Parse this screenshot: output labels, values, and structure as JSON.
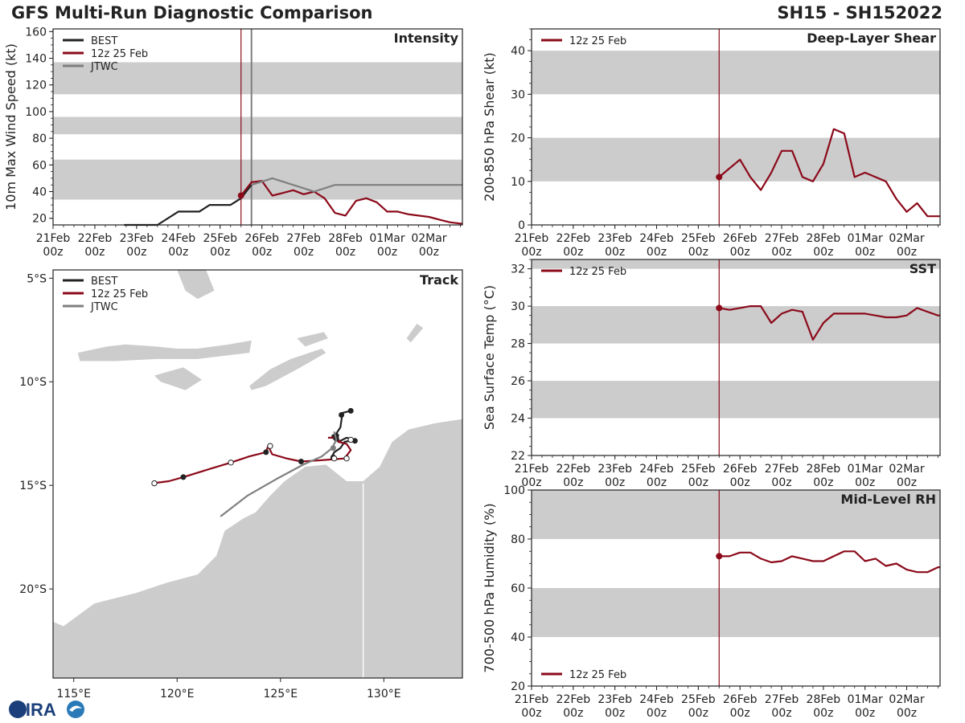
{
  "header": {
    "title_left": "GFS Multi-Run Diagnostic Comparison",
    "title_right": "SH15 - SH152022"
  },
  "colors": {
    "best": "#222222",
    "gfs": "#8b0a1a",
    "jtwc": "#7f7f7f",
    "band": "#cccccc",
    "land": "#cccccc",
    "vline_gfs": "#8b0a1a",
    "vline_jtwc": "#7f7f7f"
  },
  "time_axis": {
    "labels": [
      [
        "21Feb",
        "00z"
      ],
      [
        "22Feb",
        "00z"
      ],
      [
        "23Feb",
        "00z"
      ],
      [
        "24Feb",
        "00z"
      ],
      [
        "25Feb",
        "00z"
      ],
      [
        "26Feb",
        "00z"
      ],
      [
        "27Feb",
        "00z"
      ],
      [
        "28Feb",
        "00z"
      ],
      [
        "01Mar",
        "00z"
      ],
      [
        "02Mar",
        "00z"
      ]
    ],
    "range_days": [
      0,
      9.8
    ],
    "init_day": 4.5,
    "jtwc_day": 4.75
  },
  "logo": {
    "text": "CIRA"
  },
  "chart_data": [
    {
      "id": "intensity",
      "type": "line",
      "title": "Intensity",
      "ylabel": "10m Max Wind Speed (kt)",
      "ylim": [
        15,
        162
      ],
      "yticks": [
        20,
        40,
        60,
        80,
        100,
        120,
        140,
        160
      ],
      "bands": [
        [
          34,
          64
        ],
        [
          83,
          96
        ],
        [
          113,
          137
        ]
      ],
      "legend": [
        "BEST",
        "12z 25 Feb",
        "JTWC"
      ],
      "legend_pos": "top-left",
      "series": [
        {
          "name": "BEST",
          "key": "best",
          "x": [
            1.7,
            2.5,
            3.0,
            3.5,
            3.75,
            4.0,
            4.25,
            4.5,
            4.75
          ],
          "y": [
            15,
            15,
            25,
            25,
            30,
            30,
            30,
            35,
            45
          ]
        },
        {
          "name": "12z 25 Feb",
          "key": "gfs",
          "start_marker": true,
          "x": [
            4.5,
            4.75,
            5.0,
            5.25,
            5.5,
            5.75,
            6.0,
            6.25,
            6.5,
            6.75,
            7.0,
            7.25,
            7.5,
            7.75,
            8.0,
            8.25,
            8.5,
            8.75,
            9.0,
            9.25,
            9.5,
            9.75,
            9.8
          ],
          "y": [
            37,
            47,
            48,
            37,
            39,
            41,
            38,
            40,
            35,
            24,
            22,
            33,
            35,
            32,
            25,
            25,
            23,
            22,
            21,
            19,
            17,
            16,
            16
          ]
        },
        {
          "name": "JTWC",
          "key": "jtwc",
          "x": [
            4.75,
            5.25,
            6.25,
            6.75,
            9.8
          ],
          "y": [
            45,
            50,
            40,
            45,
            45
          ]
        }
      ]
    },
    {
      "id": "shear",
      "type": "line",
      "title": "Deep-Layer Shear",
      "ylabel": "200-850 hPa Shear (kt)",
      "ylim": [
        0,
        45
      ],
      "yticks": [
        0,
        10,
        20,
        30,
        40
      ],
      "bands": [
        [
          10,
          20
        ],
        [
          30,
          40
        ]
      ],
      "legend": [
        "12z 25 Feb"
      ],
      "legend_pos": "top-left",
      "series": [
        {
          "name": "12z 25 Feb",
          "key": "gfs",
          "start_marker": true,
          "x": [
            4.5,
            4.75,
            5.0,
            5.25,
            5.5,
            5.75,
            6.0,
            6.25,
            6.5,
            6.75,
            7.0,
            7.25,
            7.5,
            7.75,
            8.0,
            8.25,
            8.5,
            8.75,
            9.0,
            9.25,
            9.5,
            9.75,
            9.8
          ],
          "y": [
            11,
            13,
            15,
            11,
            8,
            12,
            17,
            17,
            11,
            10,
            14,
            22,
            21,
            11,
            12,
            11,
            10,
            6,
            3,
            5,
            2,
            2,
            2
          ]
        }
      ]
    },
    {
      "id": "sst",
      "type": "line",
      "title": "SST",
      "ylabel": "Sea Surface Temp (°C)",
      "ylim": [
        22,
        32.5
      ],
      "yticks": [
        22,
        24,
        26,
        28,
        30,
        32
      ],
      "bands": [
        [
          24,
          26
        ],
        [
          28,
          30
        ],
        [
          32,
          32.5
        ]
      ],
      "legend": [
        "12z 25 Feb"
      ],
      "legend_pos": "top-left",
      "series": [
        {
          "name": "12z 25 Feb",
          "key": "gfs",
          "start_marker": true,
          "x": [
            4.5,
            4.75,
            5.0,
            5.25,
            5.5,
            5.75,
            6.0,
            6.25,
            6.5,
            6.75,
            7.0,
            7.25,
            7.5,
            7.75,
            8.0,
            8.25,
            8.5,
            8.75,
            9.0,
            9.25,
            9.5,
            9.75,
            9.8
          ],
          "y": [
            29.9,
            29.8,
            29.9,
            30.0,
            30.0,
            29.1,
            29.6,
            29.8,
            29.7,
            28.2,
            29.1,
            29.6,
            29.6,
            29.6,
            29.6,
            29.5,
            29.4,
            29.4,
            29.5,
            29.9,
            29.7,
            29.5,
            29.5
          ]
        }
      ]
    },
    {
      "id": "rh",
      "type": "line",
      "title": "Mid-Level RH",
      "ylabel": "700-500 hPa Humidity (%)",
      "ylim": [
        20,
        100
      ],
      "yticks": [
        20,
        40,
        60,
        80,
        100
      ],
      "bands": [
        [
          40,
          60
        ],
        [
          80,
          100
        ]
      ],
      "legend": [
        "12z 25 Feb"
      ],
      "legend_pos": "bottom-left",
      "series": [
        {
          "name": "12z 25 Feb",
          "key": "gfs",
          "start_marker": true,
          "x": [
            4.5,
            4.75,
            5.0,
            5.25,
            5.5,
            5.75,
            6.0,
            6.25,
            6.5,
            6.75,
            7.0,
            7.25,
            7.5,
            7.75,
            8.0,
            8.25,
            8.5,
            8.75,
            9.0,
            9.25,
            9.5,
            9.75,
            9.8
          ],
          "y": [
            73,
            73,
            74.5,
            74.5,
            72,
            70.5,
            71,
            73,
            72,
            71,
            71,
            73,
            75,
            75,
            71,
            72,
            69,
            70,
            67.5,
            66.5,
            66.5,
            68.5,
            68.5
          ]
        }
      ]
    },
    {
      "id": "track",
      "type": "scatter",
      "title": "Track",
      "xlim": [
        114,
        133.8
      ],
      "ylim": [
        -24.3,
        -4.6
      ],
      "xticks": [
        115,
        120,
        125,
        130
      ],
      "xtick_labels": [
        "115°E",
        "120°E",
        "125°E",
        "130°E"
      ],
      "yticks": [
        -5,
        -10,
        -15,
        -20
      ],
      "ytick_labels": [
        "5°S",
        "10°S",
        "15°S",
        "20°S"
      ],
      "legend": [
        "BEST",
        "12z 25 Feb",
        "JTWC"
      ],
      "legend_pos": "top-left",
      "series": [
        {
          "name": "BEST",
          "key": "best",
          "lon": [
            128.4,
            128.4,
            128.0,
            127.9,
            127.7,
            127.6,
            127.8,
            128.2,
            128.6,
            128.1,
            127.9,
            127.6,
            127.5
          ],
          "lat": [
            -11.4,
            -11.4,
            -11.5,
            -12.2,
            -12.5,
            -12.7,
            -12.9,
            -12.7,
            -12.8,
            -12.9,
            -13.2,
            -13.4,
            -13.6
          ],
          "markers": [
            [
              128.4,
              -11.4
            ],
            [
              127.95,
              -11.6
            ],
            [
              127.7,
              -12.6
            ],
            [
              128.6,
              -12.85
            ],
            [
              127.6,
              -12.65
            ]
          ]
        },
        {
          "name": "12z 25 Feb",
          "key": "gfs",
          "lon": [
            127.3,
            127.6,
            127.8,
            127.9,
            127.8,
            128.2,
            128.4,
            128.1,
            127.5,
            126.8,
            126.0,
            125.3,
            124.6,
            124.4,
            124.3,
            123.5,
            122.6,
            121.6,
            120.3,
            119.6,
            118.8
          ],
          "lat": [
            -12.7,
            -12.7,
            -12.8,
            -12.9,
            -12.9,
            -13.0,
            -13.3,
            -13.7,
            -13.75,
            -13.8,
            -13.85,
            -13.7,
            -13.5,
            -13.1,
            -13.4,
            -13.6,
            -13.9,
            -14.2,
            -14.6,
            -14.8,
            -14.9
          ],
          "filled": [
            [
              127.7,
              -12.75
            ],
            [
              127.55,
              -13.65
            ],
            [
              126.0,
              -13.85
            ],
            [
              124.3,
              -13.4
            ],
            [
              120.3,
              -14.6
            ]
          ],
          "open": [
            [
              128.4,
              -12.8
            ],
            [
              128.2,
              -13.7
            ],
            [
              127.6,
              -13.7
            ],
            [
              124.5,
              -13.1
            ],
            [
              122.6,
              -13.9
            ],
            [
              118.9,
              -14.9
            ]
          ]
        },
        {
          "name": "JTWC",
          "key": "jtwc",
          "lon": [
            127.6,
            127.7,
            127.5,
            127.0,
            126.1,
            124.8,
            123.4,
            122.1
          ],
          "lat": [
            -12.4,
            -12.8,
            -13.2,
            -13.6,
            -14.0,
            -14.7,
            -15.5,
            -16.5
          ],
          "markers": [
            [
              127.55,
              -13.2
            ]
          ]
        }
      ]
    }
  ]
}
